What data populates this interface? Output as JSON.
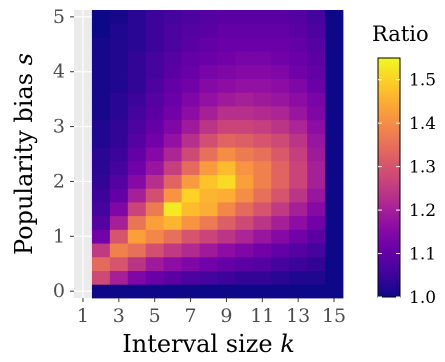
{
  "chart_data": {
    "type": "heatmap",
    "xlabel": "Interval size",
    "xlabel_var": "k",
    "ylabel": "Popularity bias",
    "ylabel_var": "s",
    "x_ticks": [
      "1",
      "3",
      "5",
      "7",
      "9",
      "11",
      "13",
      "15"
    ],
    "y_ticks": [
      "0",
      "1",
      "2",
      "3",
      "4",
      "5"
    ],
    "x_values": [
      1,
      2,
      3,
      4,
      5,
      6,
      7,
      8,
      9,
      10,
      11,
      12,
      13,
      14,
      15
    ],
    "y_values": [
      0,
      0.25,
      0.5,
      0.75,
      1,
      1.25,
      1.5,
      1.75,
      2,
      2.25,
      2.5,
      2.75,
      3,
      3.25,
      3.5,
      3.75,
      4,
      4.25,
      4.5,
      4.75,
      5
    ],
    "xlim": [
      0.5,
      15.5
    ],
    "ylim": [
      -0.125,
      5.125
    ],
    "legend": {
      "title": "Ratio",
      "labels": [
        "1.5",
        "1.4",
        "1.3",
        "1.2",
        "1.1",
        "1.0"
      ],
      "values": [
        1.5,
        1.4,
        1.3,
        1.2,
        1.1,
        1.0
      ],
      "range": [
        1.0,
        1.55
      ],
      "placement": "right"
    },
    "colormap": [
      "#0d0887",
      "#41049d",
      "#6a00a8",
      "#8f0da4",
      "#b12a90",
      "#cc4778",
      "#e16462",
      "#f2844b",
      "#fca636",
      "#fcce25",
      "#f0f921"
    ],
    "panel_background": "#ebebeb",
    "grid": true,
    "values": [
      [
        1.0,
        1.0,
        1.0,
        1.0,
        1.0,
        1.0,
        1.0,
        1.0,
        1.0,
        1.0,
        1.0,
        1.0,
        1.0,
        1.0,
        1.0
      ],
      [
        1.0,
        1.28,
        1.2,
        1.14,
        1.11,
        1.09,
        1.07,
        1.06,
        1.05,
        1.04,
        1.04,
        1.03,
        1.02,
        1.02,
        1.0
      ],
      [
        1.0,
        1.34,
        1.3,
        1.24,
        1.19,
        1.16,
        1.14,
        1.12,
        1.1,
        1.09,
        1.08,
        1.06,
        1.05,
        1.04,
        1.0
      ],
      [
        1.0,
        1.25,
        1.38,
        1.35,
        1.29,
        1.25,
        1.22,
        1.19,
        1.16,
        1.14,
        1.12,
        1.1,
        1.08,
        1.06,
        1.0
      ],
      [
        1.0,
        1.12,
        1.3,
        1.43,
        1.39,
        1.35,
        1.3,
        1.27,
        1.24,
        1.21,
        1.18,
        1.15,
        1.12,
        1.09,
        1.0
      ],
      [
        1.0,
        1.08,
        1.2,
        1.36,
        1.43,
        1.46,
        1.41,
        1.37,
        1.32,
        1.28,
        1.24,
        1.2,
        1.16,
        1.12,
        1.0
      ],
      [
        1.0,
        1.06,
        1.14,
        1.27,
        1.37,
        1.53,
        1.47,
        1.45,
        1.39,
        1.34,
        1.3,
        1.25,
        1.2,
        1.15,
        1.0
      ],
      [
        1.0,
        1.05,
        1.1,
        1.2,
        1.29,
        1.41,
        1.5,
        1.46,
        1.45,
        1.4,
        1.35,
        1.3,
        1.24,
        1.18,
        1.0
      ],
      [
        1.0,
        1.04,
        1.08,
        1.15,
        1.23,
        1.33,
        1.42,
        1.48,
        1.51,
        1.43,
        1.38,
        1.33,
        1.27,
        1.2,
        1.0
      ],
      [
        1.0,
        1.03,
        1.06,
        1.12,
        1.18,
        1.26,
        1.34,
        1.42,
        1.47,
        1.41,
        1.38,
        1.33,
        1.27,
        1.2,
        1.0
      ],
      [
        1.0,
        1.03,
        1.05,
        1.1,
        1.15,
        1.21,
        1.28,
        1.35,
        1.4,
        1.37,
        1.35,
        1.31,
        1.26,
        1.19,
        1.0
      ],
      [
        1.0,
        1.02,
        1.04,
        1.08,
        1.12,
        1.17,
        1.23,
        1.29,
        1.33,
        1.32,
        1.3,
        1.28,
        1.24,
        1.18,
        1.0
      ],
      [
        1.0,
        1.02,
        1.04,
        1.07,
        1.1,
        1.14,
        1.19,
        1.24,
        1.27,
        1.27,
        1.26,
        1.24,
        1.21,
        1.16,
        1.0
      ],
      [
        1.0,
        1.01,
        1.03,
        1.06,
        1.09,
        1.12,
        1.16,
        1.2,
        1.23,
        1.23,
        1.22,
        1.21,
        1.18,
        1.14,
        1.0
      ],
      [
        1.0,
        1.01,
        1.03,
        1.05,
        1.08,
        1.11,
        1.14,
        1.17,
        1.19,
        1.2,
        1.19,
        1.18,
        1.16,
        1.13,
        1.0
      ],
      [
        1.0,
        1.01,
        1.02,
        1.04,
        1.07,
        1.1,
        1.12,
        1.15,
        1.16,
        1.17,
        1.17,
        1.16,
        1.14,
        1.11,
        1.0
      ],
      [
        1.0,
        1.01,
        1.02,
        1.04,
        1.06,
        1.09,
        1.11,
        1.13,
        1.14,
        1.15,
        1.15,
        1.14,
        1.12,
        1.1,
        1.0
      ],
      [
        1.0,
        1.01,
        1.02,
        1.04,
        1.06,
        1.08,
        1.1,
        1.11,
        1.12,
        1.13,
        1.13,
        1.12,
        1.11,
        1.09,
        1.0
      ],
      [
        1.0,
        1.01,
        1.02,
        1.03,
        1.05,
        1.07,
        1.09,
        1.1,
        1.11,
        1.11,
        1.11,
        1.11,
        1.1,
        1.08,
        1.0
      ],
      [
        1.0,
        1.0,
        1.02,
        1.03,
        1.05,
        1.07,
        1.08,
        1.09,
        1.1,
        1.1,
        1.1,
        1.1,
        1.09,
        1.07,
        1.0
      ],
      [
        1.0,
        1.0,
        1.01,
        1.03,
        1.05,
        1.06,
        1.07,
        1.08,
        1.09,
        1.09,
        1.09,
        1.09,
        1.08,
        1.06,
        1.0
      ]
    ]
  }
}
